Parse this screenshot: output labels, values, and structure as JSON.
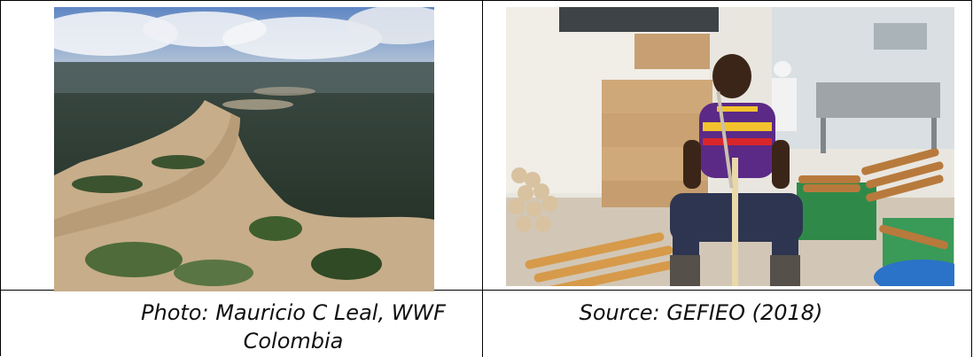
{
  "captions": {
    "left": "Photo: Mauricio C Leal, WWF Colombia",
    "right": "Source: GEFIEO (2018)"
  },
  "images": {
    "left": {
      "subject": "aerial-river-rainforest-icon"
    },
    "right": {
      "subject": "worker-sugarcane-peeling-icon"
    }
  }
}
